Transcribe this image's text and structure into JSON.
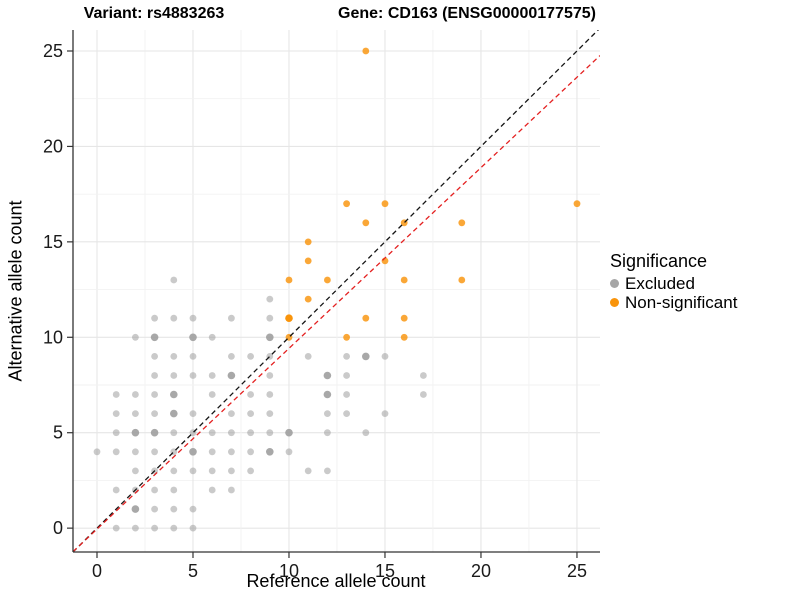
{
  "titles": {
    "left": "Variant: rs4883263",
    "right": "Gene: CD163 (ENSG00000177575)"
  },
  "chart_data": {
    "type": "scatter",
    "xlabel": "Reference allele count",
    "ylabel": "Alternative allele count",
    "xlim": [
      -1.25,
      26.2
    ],
    "ylim": [
      -1.25,
      26.1
    ],
    "xticks": [
      0,
      5,
      10,
      15,
      20,
      25
    ],
    "yticks": [
      0,
      5,
      10,
      15,
      20,
      25
    ],
    "grid": {
      "major_every": 5,
      "minor_every": 2.5,
      "major_color": "#e6e6e6",
      "minor_color": "#f2f2f2"
    },
    "legend": {
      "title": "Significance",
      "position": "right",
      "entries": [
        {
          "label": "Excluded",
          "color": "#a6a6a6"
        },
        {
          "label": "Non-significant",
          "color": "#f9940b"
        }
      ]
    },
    "series": [
      {
        "name": "Excluded",
        "color": "#9e9e9e",
        "opacity": 0.55,
        "points": [
          [
            1,
            0
          ],
          [
            2,
            0
          ],
          [
            3,
            0
          ],
          [
            4,
            0
          ],
          [
            5,
            0
          ],
          [
            2,
            1,
            2
          ],
          [
            3,
            1
          ],
          [
            4,
            1
          ],
          [
            5,
            1
          ],
          [
            1,
            2
          ],
          [
            2,
            2
          ],
          [
            3,
            2
          ],
          [
            4,
            2
          ],
          [
            6,
            2
          ],
          [
            7,
            2
          ],
          [
            2,
            3
          ],
          [
            3,
            3
          ],
          [
            4,
            3
          ],
          [
            5,
            3
          ],
          [
            6,
            3
          ],
          [
            7,
            3
          ],
          [
            8,
            3
          ],
          [
            11,
            3
          ],
          [
            12,
            3
          ],
          [
            0,
            4
          ],
          [
            1,
            4
          ],
          [
            2,
            4
          ],
          [
            3,
            4
          ],
          [
            4,
            4
          ],
          [
            5,
            4,
            2
          ],
          [
            6,
            4
          ],
          [
            7,
            4
          ],
          [
            8,
            4
          ],
          [
            9,
            4,
            2
          ],
          [
            10,
            4
          ],
          [
            1,
            5
          ],
          [
            2,
            5,
            2
          ],
          [
            3,
            5,
            2
          ],
          [
            4,
            5
          ],
          [
            5,
            5
          ],
          [
            6,
            5
          ],
          [
            7,
            5
          ],
          [
            8,
            5
          ],
          [
            9,
            5
          ],
          [
            10,
            5,
            2
          ],
          [
            12,
            5
          ],
          [
            14,
            5
          ],
          [
            1,
            6
          ],
          [
            2,
            6
          ],
          [
            3,
            6
          ],
          [
            4,
            6,
            2
          ],
          [
            5,
            6
          ],
          [
            7,
            6
          ],
          [
            8,
            6
          ],
          [
            9,
            6
          ],
          [
            12,
            6
          ],
          [
            13,
            6
          ],
          [
            15,
            6
          ],
          [
            1,
            7
          ],
          [
            2,
            7
          ],
          [
            3,
            7
          ],
          [
            4,
            7,
            2
          ],
          [
            6,
            7
          ],
          [
            8,
            7
          ],
          [
            9,
            7
          ],
          [
            12,
            7,
            2
          ],
          [
            13,
            7
          ],
          [
            17,
            7
          ],
          [
            3,
            8
          ],
          [
            4,
            8
          ],
          [
            5,
            8
          ],
          [
            6,
            8
          ],
          [
            7,
            8,
            2
          ],
          [
            9,
            8
          ],
          [
            12,
            8,
            2
          ],
          [
            13,
            8
          ],
          [
            17,
            8
          ],
          [
            3,
            9
          ],
          [
            4,
            9
          ],
          [
            5,
            9
          ],
          [
            7,
            9
          ],
          [
            8,
            9
          ],
          [
            9,
            9
          ],
          [
            11,
            9
          ],
          [
            13,
            9
          ],
          [
            14,
            9,
            2
          ],
          [
            15,
            9
          ],
          [
            2,
            10
          ],
          [
            3,
            10,
            2
          ],
          [
            5,
            10,
            2
          ],
          [
            6,
            10
          ],
          [
            9,
            10,
            2
          ],
          [
            3,
            11
          ],
          [
            4,
            11
          ],
          [
            5,
            11
          ],
          [
            7,
            11
          ],
          [
            9,
            11
          ],
          [
            9,
            12
          ],
          [
            4,
            13
          ]
        ]
      },
      {
        "name": "Non-significant",
        "color": "#f9940b",
        "opacity": 0.82,
        "points": [
          [
            10,
            10
          ],
          [
            10,
            11,
            2
          ],
          [
            10,
            13
          ],
          [
            11,
            12
          ],
          [
            11,
            14
          ],
          [
            11,
            15
          ],
          [
            12,
            13
          ],
          [
            13,
            10
          ],
          [
            13,
            17
          ],
          [
            14,
            11
          ],
          [
            14,
            16
          ],
          [
            14,
            25
          ],
          [
            15,
            14
          ],
          [
            15,
            17
          ],
          [
            16,
            10
          ],
          [
            16,
            11
          ],
          [
            16,
            13
          ],
          [
            16,
            16
          ],
          [
            19,
            13
          ],
          [
            19,
            16
          ],
          [
            25,
            17
          ]
        ]
      }
    ],
    "lines": [
      {
        "name": "identity",
        "style": "dashed",
        "color": "#151515",
        "slope": 1,
        "intercept": 0
      },
      {
        "name": "fit",
        "style": "dashed",
        "color": "#e42020",
        "slope": 0.947,
        "intercept": -0.05
      }
    ]
  }
}
